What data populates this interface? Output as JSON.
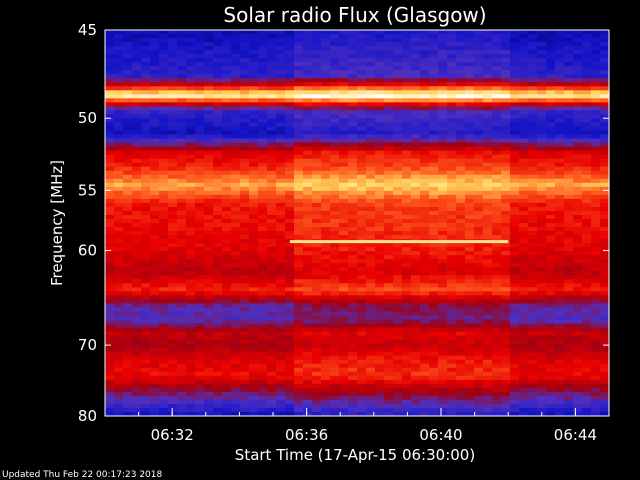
{
  "chart_data": {
    "type": "heatmap",
    "title": "Solar radio Flux (Glasgow)",
    "xlabel": "Start Time (17-Apr-15 06:30:00)",
    "ylabel": "Frequency [MHz]",
    "x_tick_labels": [
      "06:32",
      "06:36",
      "06:40",
      "06:44"
    ],
    "x_tick_minutes": [
      2,
      6,
      10,
      14
    ],
    "xlim_minutes": [
      0,
      15
    ],
    "y_tick_labels": [
      "45",
      "50",
      "55",
      "60",
      "70",
      "80"
    ],
    "y_ticks": [
      45,
      50,
      55,
      60,
      70,
      80
    ],
    "ylim": [
      45,
      80
    ],
    "y_scale": "reciprocal",
    "colormap": [
      "#000070",
      "#1414c8",
      "#5030c0",
      "#a00010",
      "#e80000",
      "#ff6020",
      "#ffd860",
      "#ffffff"
    ],
    "intensity_profile": [
      {
        "freq": 45.0,
        "level": 0.1
      },
      {
        "freq": 46.0,
        "level": 0.15
      },
      {
        "freq": 47.5,
        "level": 0.2
      },
      {
        "freq": 48.6,
        "level": 0.95
      },
      {
        "freq": 49.5,
        "level": 0.22
      },
      {
        "freq": 51.0,
        "level": 0.12
      },
      {
        "freq": 52.3,
        "level": 0.55
      },
      {
        "freq": 53.3,
        "level": 0.62
      },
      {
        "freq": 54.6,
        "level": 0.8
      },
      {
        "freq": 56.0,
        "level": 0.6
      },
      {
        "freq": 58.0,
        "level": 0.58
      },
      {
        "freq": 60.0,
        "level": 0.55
      },
      {
        "freq": 62.0,
        "level": 0.48
      },
      {
        "freq": 63.8,
        "level": 0.62
      },
      {
        "freq": 65.5,
        "level": 0.32
      },
      {
        "freq": 67.0,
        "level": 0.28
      },
      {
        "freq": 68.5,
        "level": 0.5
      },
      {
        "freq": 70.0,
        "level": 0.45
      },
      {
        "freq": 72.0,
        "level": 0.55
      },
      {
        "freq": 74.0,
        "level": 0.58
      },
      {
        "freq": 76.0,
        "level": 0.4
      },
      {
        "freq": 78.0,
        "level": 0.25
      },
      {
        "freq": 80.0,
        "level": 0.12
      }
    ],
    "enhanced_intervals": [
      {
        "start_minute": 5.5,
        "end_minute": 12.0,
        "level_boost": 0.06
      }
    ],
    "emission_lines": [
      {
        "freq": 59.2,
        "start_minute": 5.5,
        "end_minute": 12.0,
        "level": 0.9
      }
    ],
    "grid": false,
    "legend": "none"
  },
  "footer": {
    "updated_text": "Updated Thu Feb 22 00:17:23 2018"
  }
}
